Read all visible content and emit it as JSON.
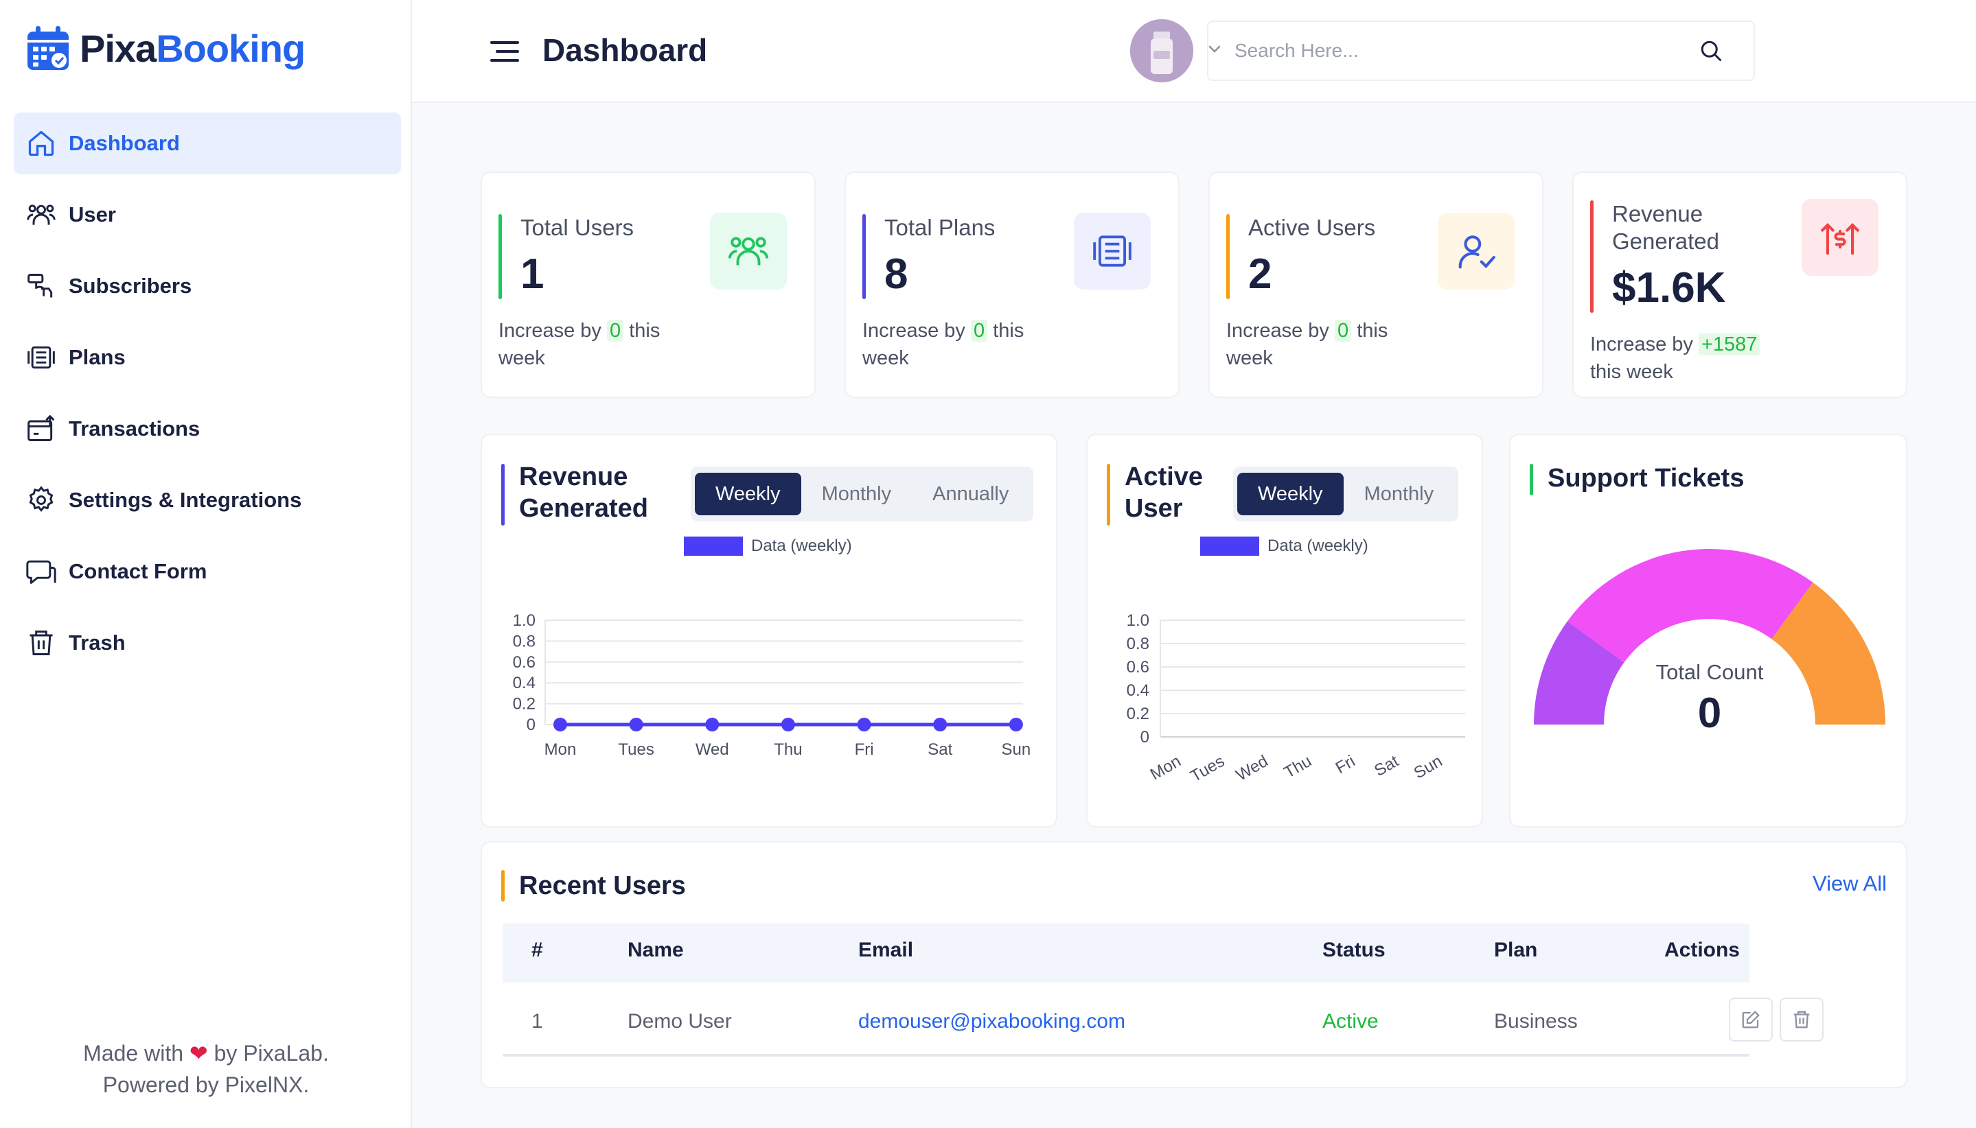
{
  "brand": {
    "part1": "Pixa",
    "part2": "Booking"
  },
  "sidebar": {
    "items": [
      {
        "label": "Dashboard",
        "icon": "home-icon",
        "active": true
      },
      {
        "label": "User",
        "icon": "users-icon"
      },
      {
        "label": "Subscribers",
        "icon": "subscribers-icon"
      },
      {
        "label": "Plans",
        "icon": "plans-icon"
      },
      {
        "label": "Transactions",
        "icon": "transactions-icon"
      },
      {
        "label": "Settings & Integrations",
        "icon": "gear-icon"
      },
      {
        "label": "Contact Form",
        "icon": "chat-icon"
      },
      {
        "label": "Trash",
        "icon": "trash-icon"
      }
    ],
    "footer": {
      "made_pre": "Made with",
      "made_post": "by PixaLab.",
      "powered": "Powered by PixelNX."
    }
  },
  "header": {
    "title": "Dashboard",
    "search_placeholder": "Search Here..."
  },
  "stats": [
    {
      "title": "Total Users",
      "value": "1",
      "foot_pre": "Increase by",
      "foot_val": "0",
      "foot_post": "this week",
      "color": "#22c55e",
      "icon": "users-icon"
    },
    {
      "title": "Total Plans",
      "value": "8",
      "foot_pre": "Increase by",
      "foot_val": "0",
      "foot_post": "this week",
      "color": "#4f46e5",
      "icon": "plans-icon"
    },
    {
      "title": "Active Users",
      "value": "2",
      "foot_pre": "Increase by",
      "foot_val": "0",
      "foot_post": "this week",
      "color": "#f59e0b",
      "icon": "user-check-icon"
    },
    {
      "title": "Revenue Generated",
      "value": "$1.6K",
      "foot_pre": "Increase by",
      "foot_val": "+1587",
      "foot_post": "this week",
      "color": "#ef4444",
      "icon": "revenue-icon"
    }
  ],
  "revenue_panel": {
    "title": "Revenue Generated",
    "tabs": [
      "Weekly",
      "Monthly",
      "Annually"
    ],
    "active_tab": "Weekly"
  },
  "active_panel": {
    "title": "Active User",
    "tabs": [
      "Weekly",
      "Monthly"
    ],
    "active_tab": "Weekly"
  },
  "support_panel": {
    "title": "Support Tickets",
    "center_label": "Total Count",
    "center_value": "0"
  },
  "chart_data": [
    {
      "type": "line",
      "legend": "Data (weekly)",
      "categories": [
        "Mon",
        "Tues",
        "Wed",
        "Thu",
        "Fri",
        "Sat",
        "Sun"
      ],
      "series": [
        {
          "name": "Data (weekly)",
          "values": [
            0,
            0,
            0,
            0,
            0,
            0,
            0
          ],
          "color": "#4b3df5"
        }
      ],
      "yticks": [
        "0",
        "0.2",
        "0.4",
        "0.6",
        "0.8",
        "1.0"
      ],
      "ylim": [
        0,
        1
      ],
      "grid": true
    },
    {
      "type": "bar",
      "legend": "Data (weekly)",
      "categories": [
        "Mon",
        "Tues",
        "Wed",
        "Thu",
        "Fri",
        "Sat",
        "Sun"
      ],
      "series": [
        {
          "name": "Data (weekly)",
          "values": [
            0,
            0,
            0,
            0,
            0,
            0,
            0
          ],
          "color": "#4b3df5"
        }
      ],
      "yticks": [
        "0",
        "0.2",
        "0.4",
        "0.6",
        "0.8",
        "1.0"
      ],
      "ylim": [
        0,
        1
      ],
      "grid": true
    },
    {
      "type": "pie",
      "title": "Total Count",
      "slices": [
        {
          "value": 0.2,
          "color": "#b44ef5"
        },
        {
          "value": 0.5,
          "color": "#f050f5"
        },
        {
          "value": 0.3,
          "color": "#fb9a3c"
        }
      ]
    }
  ],
  "recent": {
    "title": "Recent Users",
    "view_all": "View All",
    "columns": [
      "#",
      "Name",
      "Email",
      "Status",
      "Plan",
      "Actions"
    ],
    "rows": [
      {
        "num": "1",
        "name": "Demo User",
        "email": "demouser@pixabooking.com",
        "status": "Active",
        "plan": "Business"
      }
    ]
  }
}
